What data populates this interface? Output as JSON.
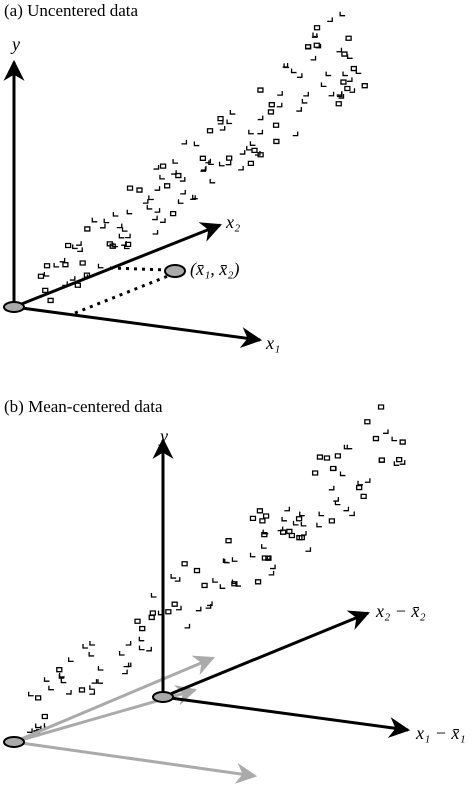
{
  "panel_a": {
    "title": "(a) Uncentered data",
    "y_label": "y",
    "x2_label": "x₂",
    "x1_label": "x₁",
    "mean_label": "(x̄₁, x̄₂)"
  },
  "panel_b": {
    "title": "(b) Mean-centered data",
    "y_label": "y",
    "x2_label": "x₂ − x̄₂",
    "x1_label": "x₁ − x̄₁"
  }
}
